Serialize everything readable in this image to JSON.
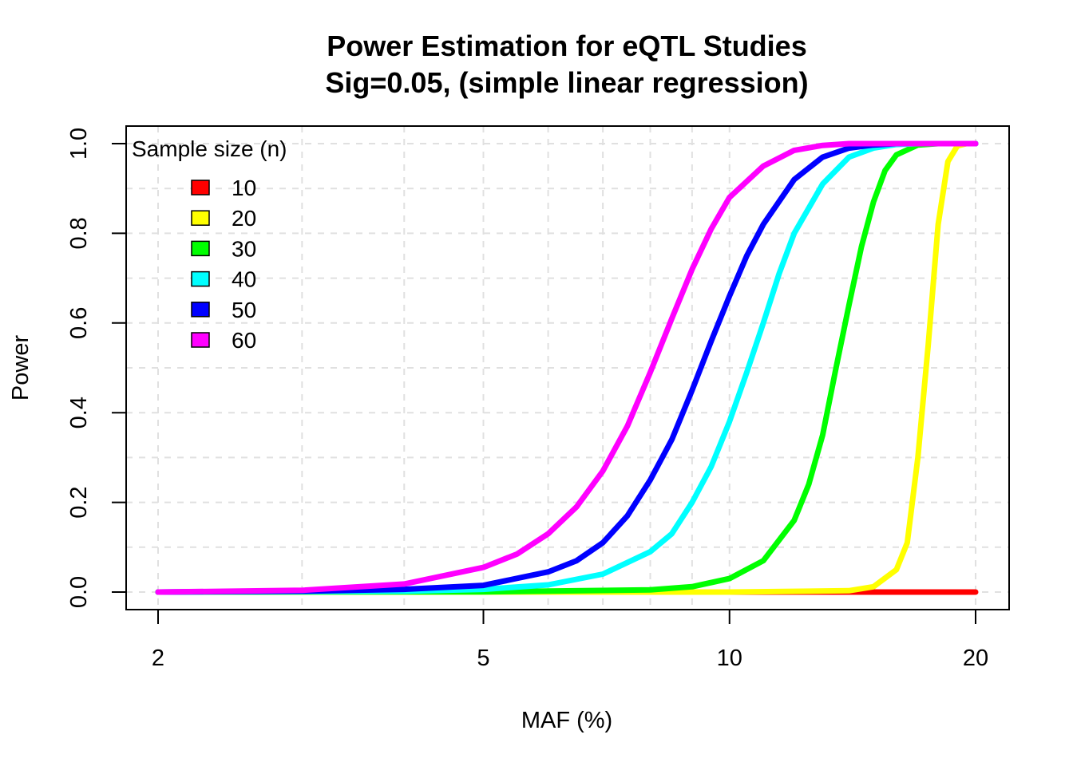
{
  "chart_data": {
    "type": "line",
    "title": "Power Estimation for eQTL Studies",
    "subtitle": "Sig=0.05, (simple linear regression)",
    "xlabel": "MAF (%)",
    "ylabel": "Power",
    "xscale": "log",
    "xlim": [
      2,
      20
    ],
    "ylim": [
      0,
      1
    ],
    "x_ticks": [
      2,
      5,
      10,
      20
    ],
    "x_tick_labels": [
      "2",
      "5",
      "10",
      "20"
    ],
    "x_minor_gridlines": [
      3,
      4,
      6,
      7,
      8,
      9
    ],
    "y_ticks": [
      0,
      0.2,
      0.4,
      0.6,
      0.8,
      1.0
    ],
    "y_tick_labels": [
      "0.0",
      "0.2",
      "0.4",
      "0.6",
      "0.8",
      "1.0"
    ],
    "y_minor_gridlines": [
      0.1,
      0.3,
      0.5,
      0.7,
      0.9
    ],
    "grid": true,
    "legend": {
      "title": "Sample size (n)",
      "position": "top-left"
    },
    "series": [
      {
        "name": "10",
        "color": "#ff0000",
        "x": [
          2,
          5,
          10,
          14,
          16,
          18,
          20
        ],
        "y": [
          0,
          0,
          0,
          0,
          0,
          0,
          0
        ]
      },
      {
        "name": "20",
        "color": "#ffff00",
        "x": [
          2,
          10,
          14,
          15,
          16,
          16.5,
          17,
          17.5,
          18,
          18.5,
          19,
          19.5,
          20
        ],
        "y": [
          0,
          0,
          0.003,
          0.012,
          0.05,
          0.11,
          0.3,
          0.55,
          0.82,
          0.96,
          0.995,
          1,
          1
        ]
      },
      {
        "name": "30",
        "color": "#00ff00",
        "x": [
          2,
          5,
          8,
          9,
          10,
          11,
          12,
          12.5,
          13,
          13.5,
          14,
          14.5,
          15,
          15.5,
          16,
          17,
          18,
          20
        ],
        "y": [
          0,
          0.0005,
          0.005,
          0.012,
          0.03,
          0.07,
          0.16,
          0.24,
          0.35,
          0.5,
          0.64,
          0.77,
          0.87,
          0.94,
          0.975,
          0.997,
          1,
          1
        ]
      },
      {
        "name": "40",
        "color": "#00ffff",
        "x": [
          2,
          4,
          5,
          6,
          7,
          8,
          8.5,
          9,
          9.5,
          10,
          10.5,
          11,
          11.5,
          12,
          13,
          14,
          15,
          16,
          17,
          18,
          20
        ],
        "y": [
          0,
          0.002,
          0.006,
          0.016,
          0.04,
          0.09,
          0.13,
          0.2,
          0.28,
          0.38,
          0.49,
          0.6,
          0.71,
          0.8,
          0.91,
          0.97,
          0.99,
          0.998,
          1,
          1,
          1
        ]
      },
      {
        "name": "50",
        "color": "#0000ff",
        "x": [
          2,
          3,
          4,
          5,
          6,
          6.5,
          7,
          7.5,
          8,
          8.5,
          9,
          9.5,
          10,
          10.5,
          11,
          12,
          13,
          14,
          15,
          16,
          17,
          18,
          20
        ],
        "y": [
          0,
          0.002,
          0.006,
          0.015,
          0.045,
          0.07,
          0.11,
          0.17,
          0.25,
          0.34,
          0.45,
          0.56,
          0.66,
          0.75,
          0.82,
          0.92,
          0.97,
          0.99,
          0.997,
          1,
          1,
          1,
          1
        ]
      },
      {
        "name": "60",
        "color": "#ff00ff",
        "x": [
          2,
          3,
          4,
          5,
          5.5,
          6,
          6.5,
          7,
          7.5,
          8,
          8.5,
          9,
          9.5,
          10,
          11,
          12,
          13,
          14,
          15,
          16,
          18,
          20
        ],
        "y": [
          0,
          0.004,
          0.018,
          0.055,
          0.085,
          0.13,
          0.19,
          0.27,
          0.37,
          0.49,
          0.61,
          0.72,
          0.81,
          0.88,
          0.95,
          0.985,
          0.996,
          1,
          1,
          1,
          1,
          1
        ]
      }
    ]
  }
}
